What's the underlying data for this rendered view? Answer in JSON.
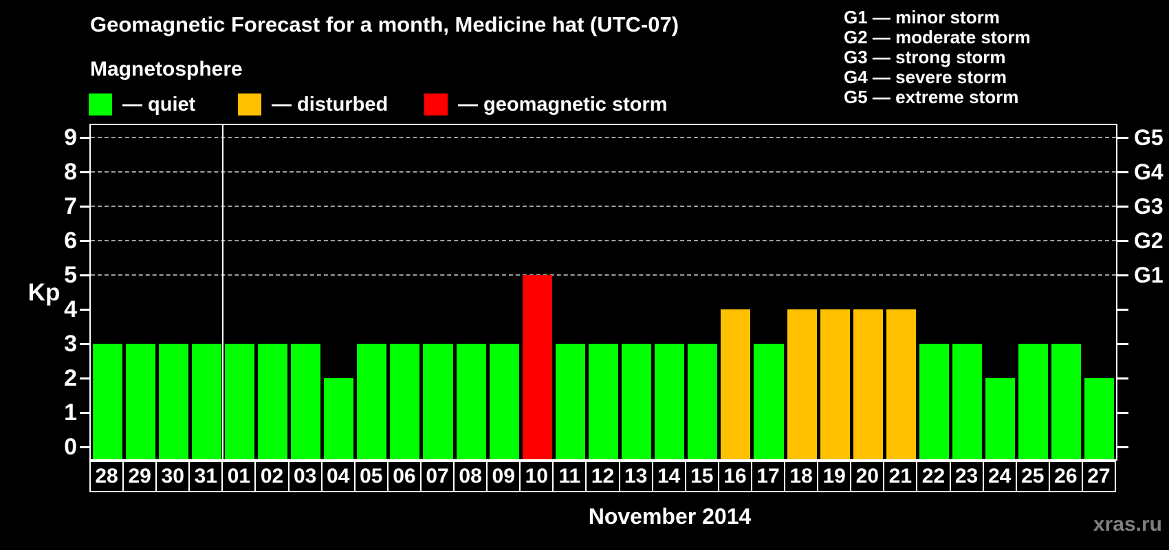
{
  "header": {
    "title": "Geomagnetic Forecast for a month, Medicine hat (UTC-07)",
    "subtitle": "Magnetosphere"
  },
  "legend": {
    "items": [
      {
        "label": "— quiet",
        "color": "#00ff00",
        "status": "quiet"
      },
      {
        "label": "— disturbed",
        "color": "#ffc000",
        "status": "disturbed"
      },
      {
        "label": "— geomagnetic storm",
        "color": "#ff0000",
        "status": "storm"
      }
    ]
  },
  "g_scale_legend": [
    "G1 — minor storm",
    "G2 — moderate storm",
    "G3 — strong storm",
    "G4 — severe storm",
    "G5 — extreme storm"
  ],
  "footer": {
    "caption": "November 2014",
    "watermark": "xras.ru"
  },
  "chart_data": {
    "type": "bar",
    "title": "Geomagnetic Forecast for a month, Medicine hat (UTC-07)",
    "ylabel": "Kp",
    "xlabel": "November 2014",
    "ylim": [
      0,
      9.4
    ],
    "yticks": [
      0,
      1,
      2,
      3,
      4,
      5,
      6,
      7,
      8,
      9
    ],
    "gridlines_at": [
      5,
      6,
      7,
      8,
      9
    ],
    "grid": "dashed horizontal lines at Kp 5-9 only",
    "legend_position": "top-left",
    "right_axis_labels": [
      {
        "kp": 5,
        "label": "G1"
      },
      {
        "kp": 6,
        "label": "G2"
      },
      {
        "kp": 7,
        "label": "G3"
      },
      {
        "kp": 8,
        "label": "G4"
      },
      {
        "kp": 9,
        "label": "G5"
      }
    ],
    "categories": [
      "28",
      "29",
      "30",
      "31",
      "01",
      "02",
      "03",
      "04",
      "05",
      "06",
      "07",
      "08",
      "09",
      "10",
      "11",
      "12",
      "13",
      "14",
      "15",
      "16",
      "17",
      "18",
      "19",
      "20",
      "21",
      "22",
      "23",
      "24",
      "25",
      "26",
      "27"
    ],
    "values": [
      3,
      3,
      3,
      3,
      3,
      3,
      3,
      2,
      3,
      3,
      3,
      3,
      3,
      5,
      3,
      3,
      3,
      3,
      3,
      4,
      3,
      4,
      4,
      4,
      4,
      3,
      3,
      2,
      3,
      3,
      2
    ],
    "statuses": [
      "quiet",
      "quiet",
      "quiet",
      "quiet",
      "quiet",
      "quiet",
      "quiet",
      "quiet",
      "quiet",
      "quiet",
      "quiet",
      "quiet",
      "quiet",
      "storm",
      "quiet",
      "quiet",
      "quiet",
      "quiet",
      "quiet",
      "disturbed",
      "quiet",
      "disturbed",
      "disturbed",
      "disturbed",
      "disturbed",
      "quiet",
      "quiet",
      "quiet",
      "quiet",
      "quiet",
      "quiet"
    ],
    "status_colors": {
      "quiet": "#00ff00",
      "disturbed": "#ffc000",
      "storm": "#ff0000"
    },
    "month_separator_after_index": 3
  }
}
